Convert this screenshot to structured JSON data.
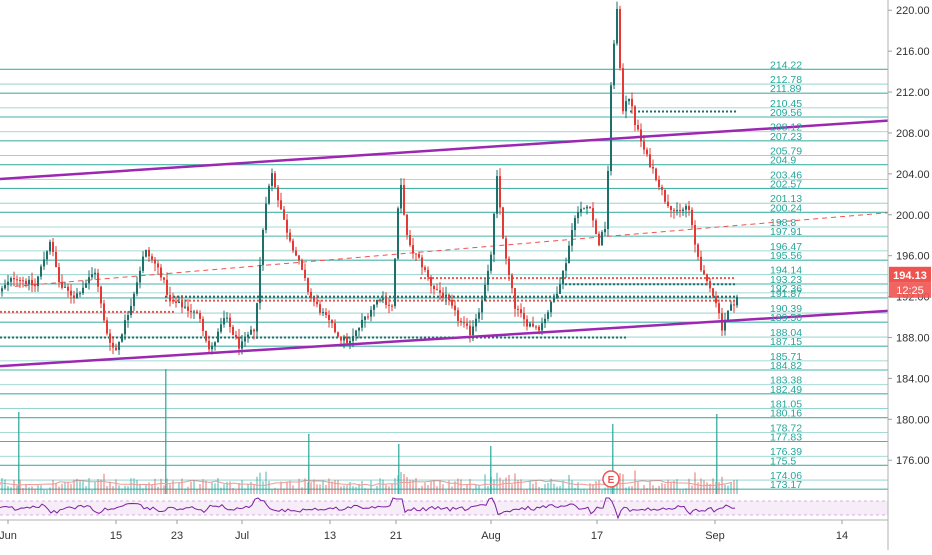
{
  "chart_data": {
    "type": "candlestick",
    "x_labels": [
      "Jun",
      "15",
      "23",
      "Jul",
      "13",
      "21",
      "Aug",
      "17",
      "Sep",
      "14"
    ],
    "y_ticks": [
      "176.00",
      "180.00",
      "184.00",
      "188.00",
      "192.00",
      "196.00",
      "200.00",
      "204.00",
      "208.00",
      "212.00",
      "216.00",
      "220.00"
    ],
    "ylim": [
      172.5,
      221.0
    ],
    "level_lines": [
      214.22,
      212.78,
      211.89,
      210.45,
      209.56,
      208.12,
      207.23,
      205.79,
      204.9,
      203.46,
      202.57,
      201.13,
      200.24,
      198.8,
      197.91,
      196.47,
      195.56,
      194.14,
      193.23,
      192.36,
      191.87,
      190.39,
      189.5,
      188.04,
      187.15,
      185.71,
      184.82,
      183.38,
      182.49,
      181.05,
      180.16,
      178.72,
      177.83,
      176.39,
      175.5,
      174.06,
      173.17
    ],
    "level_labels": [
      "214.22",
      "212.78",
      "211.89",
      "210.45",
      "209.56",
      "208.12",
      "207.23",
      "205.79",
      "204.9",
      "203.46",
      "202.57",
      "201.13",
      "200.24",
      "198.8",
      "197.91",
      "196.47",
      "195.56",
      "194.14",
      "193.23",
      "192.36",
      "191.87",
      "190.39",
      "189.50",
      "188.04",
      "187.15",
      "185.71",
      "184.82",
      "183.38",
      "182.49",
      "181.05",
      "180.16",
      "178.72",
      "177.83",
      "176.39",
      "175.5",
      "174.06",
      "173.17"
    ],
    "last_price": "194.13",
    "countdown": "12:25",
    "event_marker": "E",
    "colors": {
      "up": "#26a69a",
      "down": "#ef5350",
      "up_candle": "#1f6f6a",
      "down_candle": "#e53935",
      "level_line": "#26a69a",
      "channel": "#9c27b0",
      "price_label_bg": "#ef5350",
      "timer_label_bg": "#ef5350",
      "level_label_text": "#26a69a",
      "rsi_line": "#7b1fa2",
      "rsi_band": "#f3e5f5"
    },
    "indicator": {
      "type": "oscillator",
      "bands": [
        30,
        70
      ],
      "ylim": [
        0,
        100
      ]
    }
  }
}
